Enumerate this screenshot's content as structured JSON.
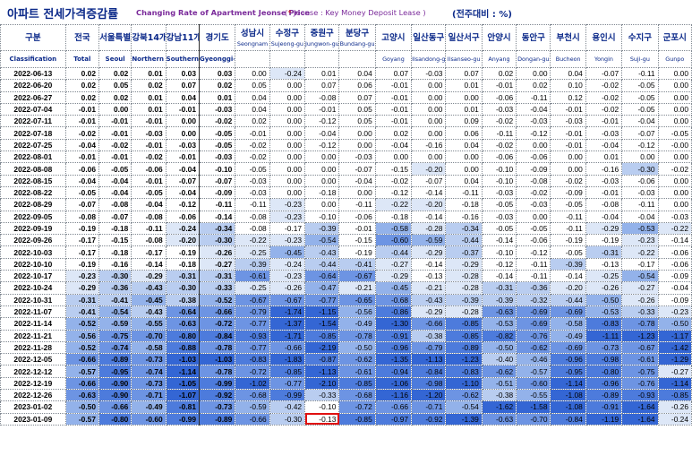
{
  "title": {
    "korean": "아파트 전세가격증감률",
    "english": "Changing Rate of Apartment Jeonse Price",
    "note_open": "(",
    "note_star": "*",
    "note_text": " Jeonse : Key Money Deposit Lease )",
    "unit": "(전주대비 : %)"
  },
  "columns": [
    {
      "ko": "구분",
      "en": "Classification",
      "bold": true
    },
    {
      "ko": "전국",
      "en": "Total",
      "bold": true
    },
    {
      "ko": "서울특별",
      "en": "Seoul",
      "bold": true
    },
    {
      "ko": "강북14개",
      "en": "Northern seoul",
      "bold": true
    },
    {
      "ko": "강남11개",
      "en": "Southern Seoul",
      "bold": true
    },
    {
      "ko": "경기도",
      "en": "Gyeonggi-do",
      "bold": true
    },
    {
      "ko": "성남시",
      "sub": "Seongnam",
      "en": "",
      "bold": false
    },
    {
      "ko": "수정구",
      "sub": "Sujeong-gu",
      "en": "",
      "bold": false
    },
    {
      "ko": "중원구",
      "sub": "Jungwon-gu",
      "en": "",
      "bold": false
    },
    {
      "ko": "분당구",
      "sub": "Bundang-gu",
      "en": "",
      "bold": false
    },
    {
      "ko": "고양시",
      "en": "Goyang",
      "bold": false
    },
    {
      "ko": "일산동구",
      "en": "Ilsandong-gu",
      "bold": false
    },
    {
      "ko": "일산서구",
      "en": "Ilsanseo-gu",
      "bold": false
    },
    {
      "ko": "안양시",
      "en": "Anyang",
      "bold": false
    },
    {
      "ko": "동안구",
      "en": "Dongan-gu",
      "bold": false
    },
    {
      "ko": "부천시",
      "en": "Bucheon",
      "bold": false
    },
    {
      "ko": "용인시",
      "en": "Yongin",
      "bold": false
    },
    {
      "ko": "수지구",
      "en": "Suji-gu",
      "bold": false
    },
    {
      "ko": "군포시",
      "en": "Gunpo",
      "bold": false
    }
  ],
  "rows": [
    {
      "date": "2022-06-13",
      "values": [
        "0.02",
        "0.02",
        "0.01",
        "0.03",
        "0.03",
        "0.00",
        "-0.24",
        "0.01",
        "0.04",
        "0.07",
        "-0.03",
        "0.07",
        "0.02",
        "0.00",
        "0.04",
        "-0.07",
        "-0.11",
        "0.00"
      ]
    },
    {
      "date": "2022-06-20",
      "values": [
        "0.02",
        "0.05",
        "0.02",
        "0.07",
        "0.02",
        "0.05",
        "0.00",
        "0.07",
        "0.06",
        "-0.01",
        "0.00",
        "0.01",
        "-0.01",
        "0.02",
        "0.10",
        "-0.02",
        "-0.05",
        "0.00"
      ]
    },
    {
      "date": "2022-06-27",
      "values": [
        "0.02",
        "0.02",
        "0.01",
        "0.04",
        "0.01",
        "0.04",
        "0.00",
        "-0.08",
        "0.07",
        "-0.01",
        "0.00",
        "0.00",
        "-0.06",
        "-0.11",
        "0.12",
        "-0.02",
        "-0.05",
        "0.00"
      ]
    },
    {
      "date": "2022-07-04",
      "values": [
        "-0.01",
        "0.00",
        "0.01",
        "-0.01",
        "-0.03",
        "0.04",
        "0.00",
        "-0.01",
        "0.05",
        "-0.01",
        "0.00",
        "0.01",
        "-0.03",
        "-0.04",
        "-0.01",
        "-0.02",
        "-0.05",
        "0.00"
      ]
    },
    {
      "date": "2022-07-11",
      "values": [
        "-0.01",
        "-0.01",
        "-0.01",
        "0.00",
        "-0.02",
        "0.02",
        "0.00",
        "-0.12",
        "0.05",
        "-0.01",
        "0.00",
        "0.09",
        "-0.02",
        "-0.03",
        "-0.03",
        "-0.01",
        "-0.04",
        "0.00"
      ]
    },
    {
      "date": "2022-07-18",
      "values": [
        "-0.02",
        "-0.01",
        "-0.03",
        "0.00",
        "-0.05",
        "-0.01",
        "0.00",
        "-0.04",
        "0.00",
        "0.02",
        "0.00",
        "0.06",
        "-0.11",
        "-0.12",
        "-0.01",
        "-0.03",
        "-0.07",
        "-0.05"
      ]
    },
    {
      "date": "2022-07-25",
      "values": [
        "-0.04",
        "-0.02",
        "-0.01",
        "-0.03",
        "-0.05",
        "-0.02",
        "0.00",
        "-0.12",
        "0.00",
        "-0.04",
        "-0.16",
        "0.04",
        "-0.02",
        "0.00",
        "-0.01",
        "-0.04",
        "-0.12",
        "-0.00"
      ]
    },
    {
      "date": "2022-08-01",
      "values": [
        "-0.01",
        "-0.01",
        "-0.02",
        "-0.01",
        "-0.03",
        "-0.02",
        "0.00",
        "0.00",
        "-0.03",
        "0.00",
        "0.00",
        "0.00",
        "-0.06",
        "-0.06",
        "0.00",
        "0.01",
        "0.00",
        "0.00"
      ]
    },
    {
      "date": "2022-08-08",
      "values": [
        "-0.06",
        "-0.05",
        "-0.06",
        "-0.04",
        "-0.10",
        "-0.05",
        "0.00",
        "0.00",
        "-0.07",
        "-0.15",
        "-0.20",
        "0.00",
        "-0.10",
        "-0.09",
        "0.00",
        "-0.16",
        "-0.30",
        "-0.02"
      ]
    },
    {
      "date": "2022-08-15",
      "values": [
        "-0.04",
        "-0.04",
        "-0.01",
        "-0.07",
        "-0.07",
        "-0.03",
        "0.00",
        "0.00",
        "-0.04",
        "-0.02",
        "-0.07",
        "0.04",
        "-0.10",
        "-0.08",
        "-0.02",
        "-0.03",
        "-0.06",
        "0.00"
      ]
    },
    {
      "date": "2022-08-22",
      "values": [
        "-0.05",
        "-0.04",
        "-0.05",
        "-0.04",
        "-0.09",
        "-0.03",
        "0.00",
        "-0.18",
        "0.00",
        "-0.12",
        "-0.14",
        "-0.11",
        "-0.03",
        "-0.02",
        "-0.09",
        "-0.01",
        "-0.03",
        "0.00"
      ]
    },
    {
      "date": "2022-08-29",
      "values": [
        "-0.07",
        "-0.08",
        "-0.04",
        "-0.12",
        "-0.11",
        "-0.11",
        "-0.23",
        "0.00",
        "-0.11",
        "-0.22",
        "-0.20",
        "-0.18",
        "-0.05",
        "-0.03",
        "-0.05",
        "-0.08",
        "-0.11",
        "0.00"
      ]
    },
    {
      "date": "2022-09-05",
      "values": [
        "-0.08",
        "-0.07",
        "-0.08",
        "-0.06",
        "-0.14",
        "-0.08",
        "-0.23",
        "-0.10",
        "-0.06",
        "-0.18",
        "-0.14",
        "-0.16",
        "-0.03",
        "0.00",
        "-0.11",
        "-0.04",
        "-0.04",
        "-0.03"
      ]
    },
    {
      "date": "2022-09-19",
      "values": [
        "-0.19",
        "-0.18",
        "-0.11",
        "-0.24",
        "-0.34",
        "-0.08",
        "-0.17",
        "-0.39",
        "-0.01",
        "-0.58",
        "-0.28",
        "-0.34",
        "-0.05",
        "-0.05",
        "-0.11",
        "-0.29",
        "-0.53",
        "-0.22"
      ]
    },
    {
      "date": "2022-09-26",
      "values": [
        "-0.17",
        "-0.15",
        "-0.08",
        "-0.20",
        "-0.30",
        "-0.22",
        "-0.23",
        "-0.54",
        "-0.15",
        "-0.60",
        "-0.59",
        "-0.44",
        "-0.14",
        "-0.06",
        "-0.19",
        "-0.19",
        "-0.23",
        "-0.14"
      ]
    },
    {
      "date": "2022-10-03",
      "values": [
        "-0.17",
        "-0.18",
        "-0.17",
        "-0.19",
        "-0.26",
        "-0.25",
        "-0.45",
        "-0.43",
        "-0.19",
        "-0.44",
        "-0.29",
        "-0.37",
        "-0.10",
        "-0.12",
        "-0.05",
        "-0.31",
        "-0.22",
        "-0.06"
      ]
    },
    {
      "date": "2022-10-10",
      "values": [
        "-0.19",
        "-0.16",
        "-0.14",
        "-0.18",
        "-0.27",
        "-0.39",
        "-0.24",
        "-0.44",
        "-0.41",
        "-0.27",
        "-0.14",
        "-0.29",
        "-0.12",
        "-0.11",
        "-0.39",
        "-0.13",
        "-0.17",
        "-0.06"
      ]
    },
    {
      "date": "2022-10-17",
      "values": [
        "-0.23",
        "-0.30",
        "-0.29",
        "-0.31",
        "-0.31",
        "-0.61",
        "-0.23",
        "-0.64",
        "-0.67",
        "-0.29",
        "-0.13",
        "-0.28",
        "-0.14",
        "-0.11",
        "-0.14",
        "-0.25",
        "-0.54",
        "-0.09"
      ]
    },
    {
      "date": "2022-10-24",
      "values": [
        "-0.29",
        "-0.36",
        "-0.43",
        "-0.30",
        "-0.33",
        "-0.25",
        "-0.26",
        "-0.47",
        "-0.21",
        "-0.45",
        "-0.21",
        "-0.28",
        "-0.31",
        "-0.36",
        "-0.20",
        "-0.26",
        "-0.27",
        "-0.04"
      ]
    },
    {
      "date": "2022-10-31",
      "values": [
        "-0.31",
        "-0.41",
        "-0.45",
        "-0.38",
        "-0.52",
        "-0.67",
        "-0.67",
        "-0.77",
        "-0.65",
        "-0.68",
        "-0.43",
        "-0.39",
        "-0.39",
        "-0.32",
        "-0.44",
        "-0.50",
        "-0.26",
        "-0.09"
      ]
    },
    {
      "date": "2022-11-07",
      "values": [
        "-0.41",
        "-0.54",
        "-0.43",
        "-0.64",
        "-0.66",
        "-0.79",
        "-1.74",
        "-1.15",
        "-0.56",
        "-0.86",
        "-0.29",
        "-0.28",
        "-0.63",
        "-0.69",
        "-0.69",
        "-0.53",
        "-0.33",
        "-0.23"
      ]
    },
    {
      "date": "2022-11-14",
      "values": [
        "-0.52",
        "-0.59",
        "-0.55",
        "-0.63",
        "-0.72",
        "-0.77",
        "-1.37",
        "-1.54",
        "-0.49",
        "-1.30",
        "-0.66",
        "-0.85",
        "-0.53",
        "-0.69",
        "-0.58",
        "-0.83",
        "-0.78",
        "-0.50"
      ]
    },
    {
      "date": "2022-11-21",
      "values": [
        "-0.56",
        "-0.75",
        "-0.70",
        "-0.80",
        "-0.84",
        "-0.93",
        "-1.71",
        "-0.85",
        "-0.78",
        "-0.91",
        "-0.38",
        "-0.85",
        "-0.82",
        "-0.76",
        "-0.49",
        "-1.11",
        "-1.23",
        "-1.17"
      ]
    },
    {
      "date": "2022-11-28",
      "values": [
        "-0.52",
        "-0.74",
        "-0.58",
        "-0.88",
        "-0.78",
        "-0.77",
        "-0.66",
        "-2.19",
        "-0.50",
        "-0.96",
        "-0.79",
        "-0.89",
        "-0.50",
        "-0.62",
        "-0.69",
        "-0.73",
        "-0.67",
        "-1.42"
      ]
    },
    {
      "date": "2022-12-05",
      "values": [
        "-0.66",
        "-0.89",
        "-0.73",
        "-1.03",
        "-1.03",
        "-0.83",
        "-1.83",
        "-0.87",
        "-0.62",
        "-1.35",
        "-1.13",
        "-1.23",
        "-0.40",
        "-0.46",
        "-0.96",
        "-0.98",
        "-0.61",
        "-1.29"
      ]
    },
    {
      "date": "2022-12-12",
      "values": [
        "-0.57",
        "-0.95",
        "-0.74",
        "-1.14",
        "-0.78",
        "-0.72",
        "-0.85",
        "-1.13",
        "-0.61",
        "-0.94",
        "-0.84",
        "-0.83",
        "-0.62",
        "-0.57",
        "-0.95",
        "-0.80",
        "-0.75",
        "-0.27"
      ]
    },
    {
      "date": "2022-12-19",
      "values": [
        "-0.66",
        "-0.90",
        "-0.73",
        "-1.05",
        "-0.99",
        "-1.02",
        "-0.77",
        "-2.10",
        "-0.85",
        "-1.06",
        "-0.98",
        "-1.10",
        "-0.51",
        "-0.60",
        "-1.14",
        "-0.96",
        "-0.76",
        "-1.14"
      ]
    },
    {
      "date": "2022-12-26",
      "values": [
        "-0.63",
        "-0.90",
        "-0.71",
        "-1.07",
        "-0.92",
        "-0.68",
        "-0.99",
        "-0.33",
        "-0.68",
        "-1.16",
        "-1.20",
        "-0.62",
        "-0.38",
        "-0.55",
        "-1.08",
        "-0.89",
        "-0.93",
        "-0.85"
      ]
    },
    {
      "date": "2023-01-02",
      "values": [
        "-0.50",
        "-0.66",
        "-0.49",
        "-0.81",
        "-0.73",
        "-0.59",
        "-0.42",
        "-0.10",
        "-0.72",
        "-0.66",
        "-0.71",
        "-0.54",
        "-1.62",
        "-1.58",
        "-1.08",
        "-0.91",
        "-1.64",
        "-0.26"
      ]
    },
    {
      "date": "2023-01-09",
      "values": [
        "-0.57",
        "-0.80",
        "-0.60",
        "-0.99",
        "-0.89",
        "-0.66",
        "-0.30",
        "-0.13",
        "-0.85",
        "-0.97",
        "-0.92",
        "-1.39",
        "-0.63",
        "-0.70",
        "-0.84",
        "-1.19",
        "-1.64",
        "-0.24"
      ]
    }
  ],
  "highlight": {
    "row": 29,
    "col": 8,
    "color": "#e01010"
  },
  "heat_colors": [
    "#ffffff",
    "#dde7f7",
    "#b9cdf0",
    "#93b2ea",
    "#6d94e3",
    "#4d7bdc",
    "#3466d4"
  ]
}
